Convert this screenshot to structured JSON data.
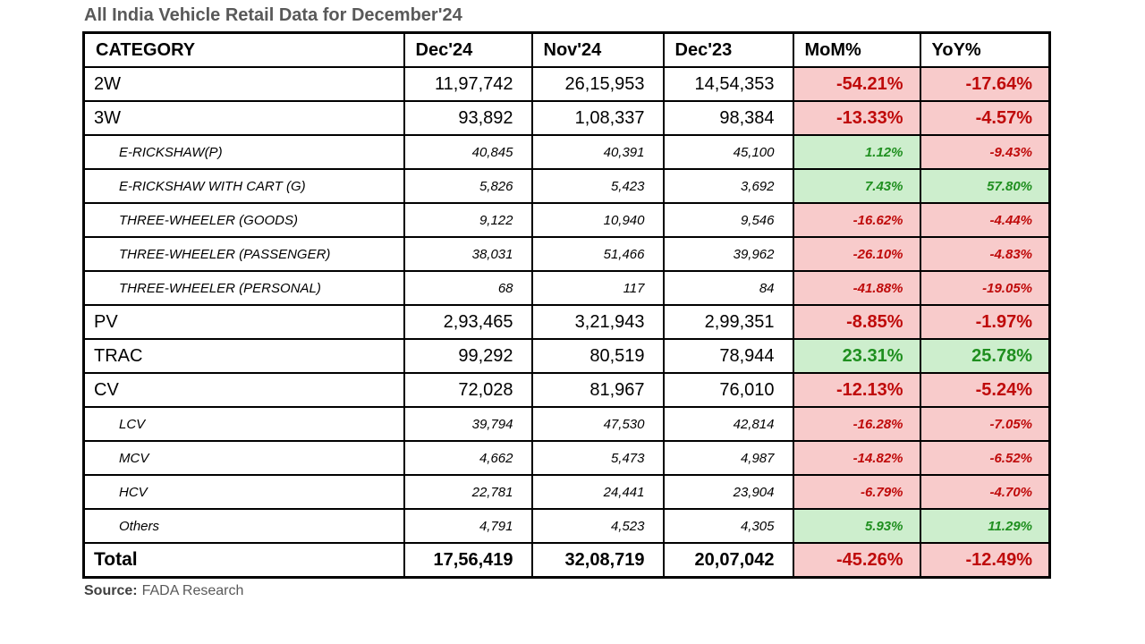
{
  "title": "All India Vehicle Retail Data for December'24",
  "source": {
    "label": "Source:",
    "text": "FADA Research"
  },
  "colors": {
    "negative_bg": "#f8cbcb",
    "negative_text": "#bf0a0a",
    "positive_bg": "#cdeecd",
    "positive_text": "#1f8f1f",
    "title_text": "#595959",
    "border": "#000000"
  },
  "chart_data": {
    "type": "table",
    "title": "All India Vehicle Retail Data for December'24",
    "columns": [
      "CATEGORY",
      "Dec'24",
      "Nov'24",
      "Dec'23",
      "MoM%",
      "YoY%"
    ],
    "rows": [
      {
        "category": "2W",
        "style": "main",
        "dec24": "11,97,742",
        "nov24": "26,15,953",
        "dec23": "14,54,353",
        "mom": "-54.21%",
        "yoy": "-17.64%"
      },
      {
        "category": "3W",
        "style": "main",
        "dec24": "93,892",
        "nov24": "1,08,337",
        "dec23": "98,384",
        "mom": "-13.33%",
        "yoy": "-4.57%"
      },
      {
        "category": "E-RICKSHAW(P)",
        "style": "sub",
        "dec24": "40,845",
        "nov24": "40,391",
        "dec23": "45,100",
        "mom": "1.12%",
        "yoy": "-9.43%"
      },
      {
        "category": "E-RICKSHAW WITH CART (G)",
        "style": "sub",
        "dec24": "5,826",
        "nov24": "5,423",
        "dec23": "3,692",
        "mom": "7.43%",
        "yoy": "57.80%"
      },
      {
        "category": "THREE-WHEELER (GOODS)",
        "style": "sub",
        "dec24": "9,122",
        "nov24": "10,940",
        "dec23": "9,546",
        "mom": "-16.62%",
        "yoy": "-4.44%"
      },
      {
        "category": "THREE-WHEELER (PASSENGER)",
        "style": "sub",
        "dec24": "38,031",
        "nov24": "51,466",
        "dec23": "39,962",
        "mom": "-26.10%",
        "yoy": "-4.83%"
      },
      {
        "category": "THREE-WHEELER (PERSONAL)",
        "style": "sub",
        "dec24": "68",
        "nov24": "117",
        "dec23": "84",
        "mom": "-41.88%",
        "yoy": "-19.05%"
      },
      {
        "category": "PV",
        "style": "main",
        "dec24": "2,93,465",
        "nov24": "3,21,943",
        "dec23": "2,99,351",
        "mom": "-8.85%",
        "yoy": "-1.97%"
      },
      {
        "category": "TRAC",
        "style": "main",
        "dec24": "99,292",
        "nov24": "80,519",
        "dec23": "78,944",
        "mom": "23.31%",
        "yoy": "25.78%"
      },
      {
        "category": "CV",
        "style": "main",
        "dec24": "72,028",
        "nov24": "81,967",
        "dec23": "76,010",
        "mom": "-12.13%",
        "yoy": "-5.24%"
      },
      {
        "category": "LCV",
        "style": "sub",
        "dec24": "39,794",
        "nov24": "47,530",
        "dec23": "42,814",
        "mom": "-16.28%",
        "yoy": "-7.05%"
      },
      {
        "category": "MCV",
        "style": "sub",
        "dec24": "4,662",
        "nov24": "5,473",
        "dec23": "4,987",
        "mom": "-14.82%",
        "yoy": "-6.52%"
      },
      {
        "category": "HCV",
        "style": "sub",
        "dec24": "22,781",
        "nov24": "24,441",
        "dec23": "23,904",
        "mom": "-6.79%",
        "yoy": "-4.70%"
      },
      {
        "category": "Others",
        "style": "sub",
        "dec24": "4,791",
        "nov24": "4,523",
        "dec23": "4,305",
        "mom": "5.93%",
        "yoy": "11.29%"
      },
      {
        "category": "Total",
        "style": "total",
        "dec24": "17,56,419",
        "nov24": "32,08,719",
        "dec23": "20,07,042",
        "mom": "-45.26%",
        "yoy": "-12.49%"
      }
    ],
    "source": "FADA Research"
  }
}
